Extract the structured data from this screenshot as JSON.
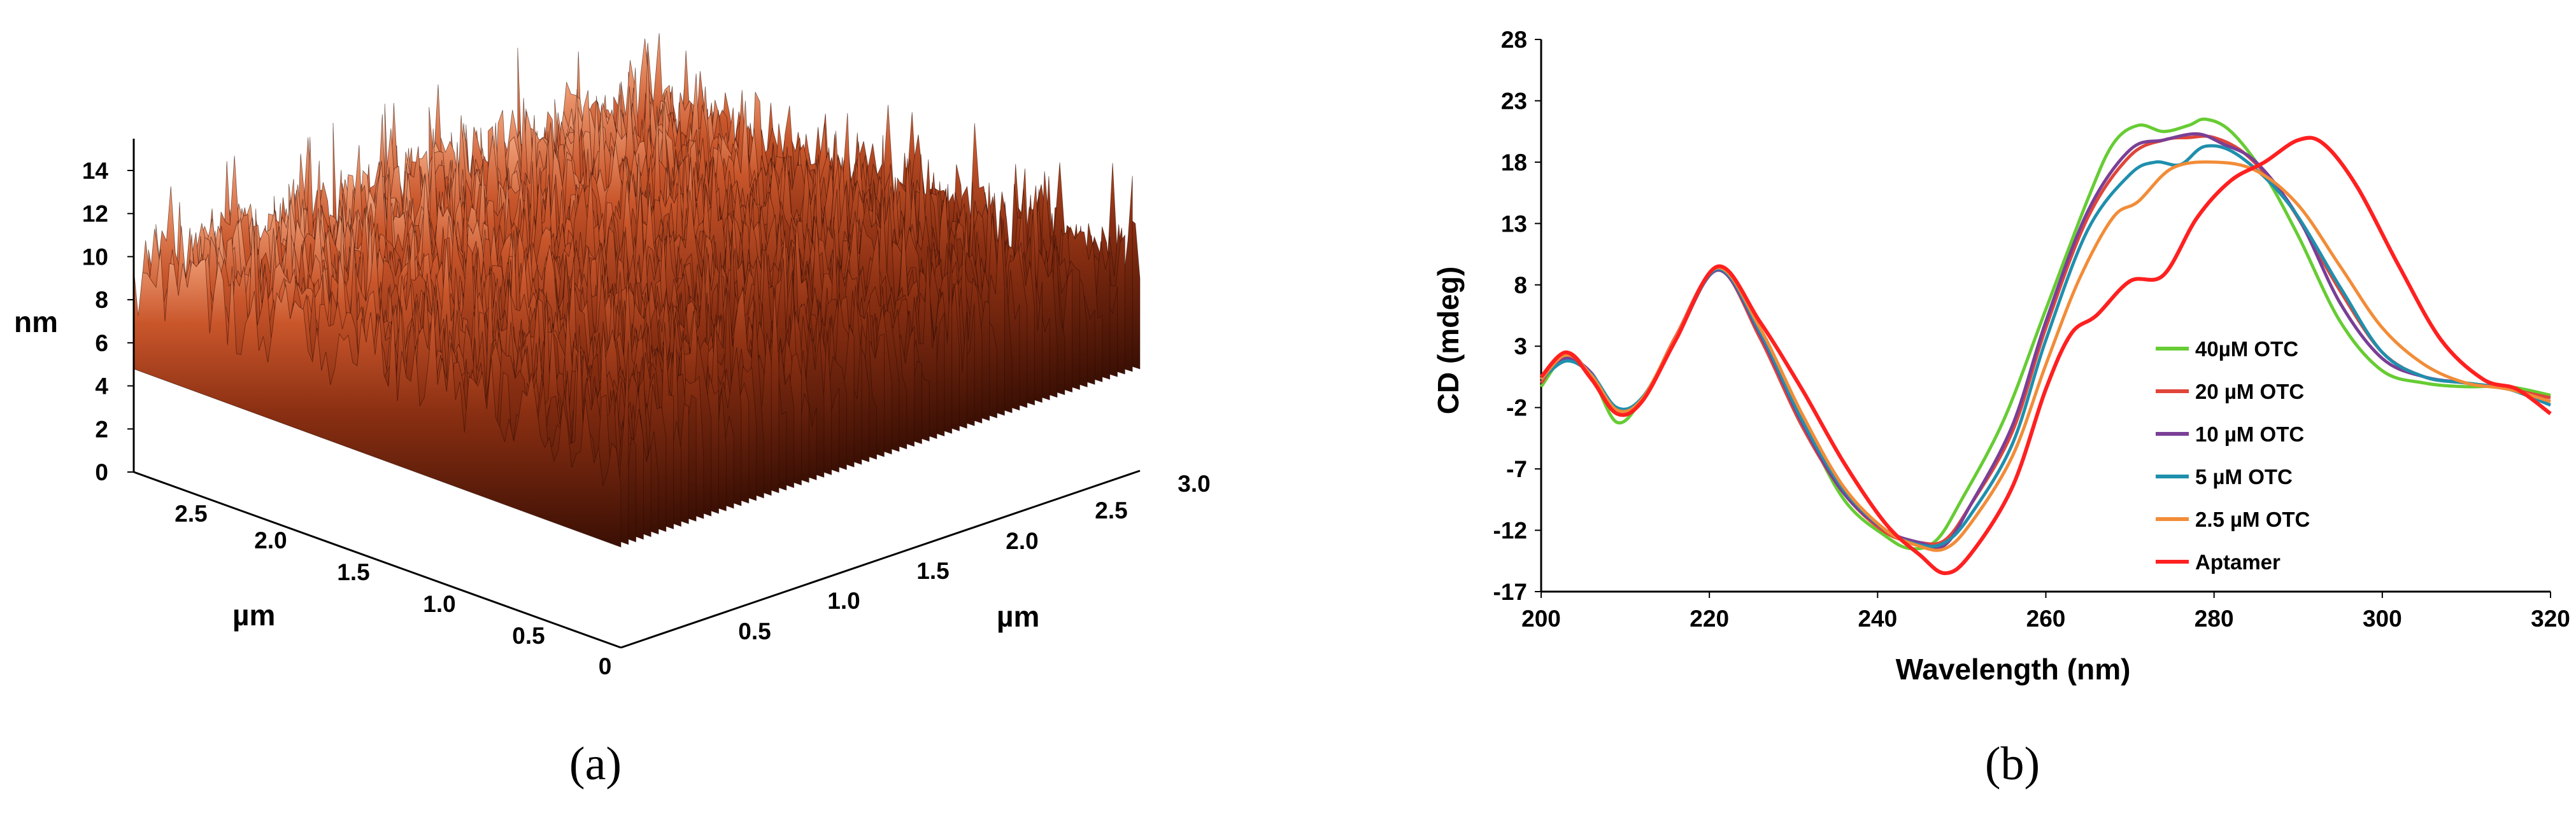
{
  "panel_a": {
    "caption": "(a)",
    "z_label": "nm",
    "x_label": "µm",
    "y_label": "µm",
    "z_ticks": [
      "0",
      "2",
      "4",
      "6",
      "8",
      "10",
      "12",
      "14"
    ],
    "x_ticks": [
      "0",
      "0.5",
      "1.0",
      "1.5",
      "2.0",
      "2.5"
    ],
    "y_ticks": [
      "0.5",
      "1.0",
      "1.5",
      "2.0",
      "2.5",
      "3.0"
    ],
    "colors": {
      "surface_dark": "#3a0f04",
      "surface_mid": "#b0441e",
      "surface_light": "#f2a27a"
    }
  },
  "panel_b": {
    "caption": "(b)",
    "chart_data": {
      "type": "line",
      "xlabel": "Wavelength (nm)",
      "ylabel": "CD (mdeg)",
      "xlim": [
        200,
        320
      ],
      "ylim": [
        -17,
        28
      ],
      "x_ticks": [
        200,
        220,
        240,
        260,
        280,
        300,
        320
      ],
      "y_ticks": [
        -17,
        -12,
        -7,
        -2,
        3,
        8,
        13,
        18,
        23,
        28
      ],
      "legend_position": "right",
      "grid": false,
      "series": [
        {
          "name": "40µM OTC",
          "color": "#66cc33",
          "x": [
            200,
            203,
            206,
            209,
            212,
            216,
            221,
            226,
            231,
            236,
            241,
            244,
            247,
            250,
            255,
            260,
            265,
            268,
            271,
            274,
            277,
            279,
            282,
            286,
            290,
            295,
            300,
            305,
            310,
            315,
            320
          ],
          "y": [
            -0.3,
            2.2,
            0.5,
            -3.2,
            -1.3,
            3.5,
            9.2,
            4.0,
            -3.0,
            -9.5,
            -12.5,
            -13.5,
            -12.8,
            -9.5,
            -3.0,
            6.0,
            15.0,
            19.5,
            21.0,
            20.5,
            21.0,
            21.5,
            20.5,
            17.0,
            12.0,
            5.0,
            1.0,
            0.0,
            -0.3,
            -0.3,
            -1.0
          ]
        },
        {
          "name": "20 µM OTC",
          "color": "#e0453a",
          "x": [
            200,
            203,
            206,
            209,
            212,
            216,
            221,
            226,
            231,
            236,
            241,
            245,
            248,
            251,
            256,
            260,
            265,
            270,
            274,
            277,
            280,
            284,
            289,
            295,
            300,
            305,
            310,
            315,
            320
          ],
          "y": [
            0.0,
            2.5,
            0.5,
            -2.5,
            -1.5,
            3.8,
            9.3,
            3.7,
            -3.5,
            -9.0,
            -12.2,
            -13.0,
            -12.8,
            -10.0,
            -4.0,
            4.5,
            13.5,
            18.5,
            19.8,
            20.0,
            20.0,
            18.5,
            14.5,
            7.5,
            2.5,
            0.5,
            0.0,
            -0.5,
            -1.2
          ]
        },
        {
          "name": "10 µM OTC",
          "color": "#7a3f96",
          "x": [
            200,
            203,
            206,
            209,
            212,
            216,
            221,
            226,
            231,
            236,
            241,
            245,
            248,
            251,
            256,
            260,
            265,
            270,
            274,
            278,
            281,
            285,
            290,
            295,
            300,
            305,
            310,
            315,
            320
          ],
          "y": [
            0.5,
            2.0,
            0.8,
            -2.5,
            -1.3,
            3.5,
            9.2,
            4.0,
            -3.2,
            -9.0,
            -12.0,
            -13.0,
            -13.2,
            -10.0,
            -3.5,
            5.0,
            14.0,
            19.0,
            19.8,
            20.3,
            19.5,
            18.0,
            13.5,
            6.5,
            2.0,
            0.5,
            0.0,
            -0.5,
            -1.5
          ]
        },
        {
          "name": "5 µM OTC",
          "color": "#1f8fad",
          "x": [
            200,
            203,
            206,
            209,
            212,
            216,
            221,
            226,
            231,
            236,
            241,
            245,
            248,
            251,
            256,
            260,
            265,
            270,
            273,
            276,
            279,
            283,
            289,
            295,
            300,
            305,
            310,
            315,
            320
          ],
          "y": [
            0.3,
            1.8,
            0.7,
            -2.0,
            -1.2,
            3.5,
            9.3,
            4.2,
            -3.0,
            -8.7,
            -12.0,
            -13.2,
            -13.0,
            -10.8,
            -5.0,
            3.5,
            12.5,
            17.0,
            18.0,
            17.8,
            19.3,
            18.5,
            14.5,
            7.8,
            2.5,
            0.5,
            0.0,
            -0.5,
            -1.8
          ]
        },
        {
          "name": "2.5 µM OTC",
          "color": "#f28c38",
          "x": [
            200,
            203,
            206,
            209,
            212,
            216,
            221,
            226,
            231,
            236,
            241,
            245,
            248,
            251,
            256,
            260,
            264,
            268,
            271,
            275,
            280,
            285,
            290,
            295,
            300,
            305,
            310,
            315,
            320
          ],
          "y": [
            0.3,
            2.3,
            0.6,
            -2.2,
            -1.3,
            3.7,
            9.4,
            4.5,
            -2.5,
            -8.5,
            -12.0,
            -13.3,
            -13.5,
            -11.5,
            -6.0,
            1.5,
            8.5,
            13.5,
            14.8,
            17.5,
            18.0,
            17.3,
            14.5,
            9.5,
            4.5,
            1.5,
            0.0,
            -0.5,
            -1.5
          ]
        },
        {
          "name": "Aptamer",
          "color": "#ff2020",
          "x": [
            200,
            203,
            206,
            209,
            212,
            216,
            221,
            226,
            231,
            236,
            241,
            245,
            248,
            251,
            256,
            260,
            263,
            266,
            270,
            274,
            278,
            282,
            286,
            290,
            293,
            297,
            302,
            307,
            312,
            316,
            320
          ],
          "y": [
            0.5,
            2.5,
            0.3,
            -2.5,
            -1.5,
            3.5,
            9.5,
            5.0,
            -0.5,
            -6.5,
            -11.5,
            -14.0,
            -15.5,
            -14.0,
            -8.5,
            -0.5,
            4.0,
            5.5,
            8.3,
            8.8,
            13.5,
            16.5,
            18.0,
            19.8,
            19.5,
            16.0,
            9.5,
            3.5,
            0.3,
            -0.5,
            -2.5
          ]
        }
      ]
    }
  }
}
